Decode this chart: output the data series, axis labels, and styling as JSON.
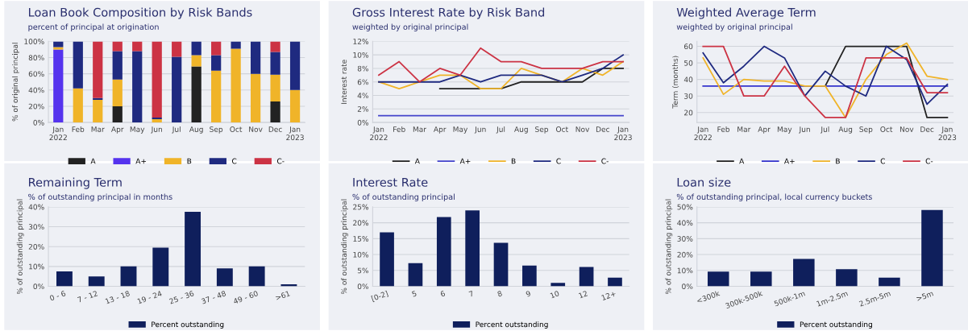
{
  "chart_data": [
    {
      "type": "bar",
      "title": "Loan Book Composition by Risk Bands",
      "subtitle": "percent of principal at origination",
      "ylabel": "% of original principal",
      "stacked": true,
      "grid": "y",
      "legend": "bottom",
      "categories": [
        "Jan\n2022",
        "Feb",
        "Mar",
        "Apr",
        "May",
        "Jun",
        "Jul",
        "Aug",
        "Sep",
        "Oct",
        "Nov",
        "Dec",
        "Jan\n2023"
      ],
      "ylim": [
        0,
        100
      ],
      "yticks": [
        {
          "value": 0,
          "label": "0%"
        },
        {
          "value": 20,
          "label": "20%"
        },
        {
          "value": 40,
          "label": "40%"
        },
        {
          "value": 60,
          "label": "60%"
        },
        {
          "value": 80,
          "label": "80%"
        },
        {
          "value": 100,
          "label": "100%"
        }
      ],
      "series": [
        {
          "name": "A",
          "color": "#222222",
          "values": [
            null,
            null,
            null,
            20,
            null,
            null,
            null,
            69,
            null,
            null,
            null,
            26,
            null
          ]
        },
        {
          "name": "A+",
          "color": "#5533ee",
          "values": [
            90,
            null,
            null,
            null,
            null,
            null,
            null,
            null,
            null,
            null,
            null,
            null,
            null
          ]
        },
        {
          "name": "B",
          "color": "#f0b429",
          "values": [
            3,
            42,
            28,
            33,
            null,
            4,
            null,
            14,
            64,
            91,
            60,
            33,
            40
          ]
        },
        {
          "name": "C",
          "color": "#1f2a80",
          "values": [
            7,
            58,
            2,
            35,
            88,
            2,
            81,
            17,
            19,
            9,
            40,
            28,
            60
          ]
        },
        {
          "name": "C-",
          "color": "#cc3344",
          "values": [
            null,
            null,
            70,
            12,
            12,
            94,
            19,
            null,
            17,
            null,
            null,
            13,
            null
          ]
        }
      ]
    },
    {
      "type": "line",
      "title": "Gross Interest Rate by Risk Band",
      "subtitle": "weighted by original principal",
      "ylabel": "Interest rate",
      "grid": "y",
      "legend": "bottom",
      "categories": [
        "Jan\n2022",
        "Feb",
        "Mar",
        "Apr",
        "May",
        "Jun",
        "Jul",
        "Aug",
        "Sep",
        "Oct",
        "Nov",
        "Dec",
        "Jan\n2023"
      ],
      "ylim": [
        0,
        12
      ],
      "yticks": [
        {
          "value": 0,
          "label": "0%"
        },
        {
          "value": 2,
          "label": "2%"
        },
        {
          "value": 4,
          "label": "4%"
        },
        {
          "value": 6,
          "label": "6%"
        },
        {
          "value": 8,
          "label": "8%"
        },
        {
          "value": 10,
          "label": "10%"
        },
        {
          "value": 12,
          "label": "12%"
        }
      ],
      "series": [
        {
          "name": "A",
          "color": "#222222",
          "values": [
            null,
            null,
            null,
            5,
            5,
            5,
            5,
            6,
            6,
            6,
            6,
            8,
            8
          ]
        },
        {
          "name": "A+",
          "color": "#4444cc",
          "values": [
            1,
            1,
            1,
            1,
            1,
            1,
            1,
            1,
            1,
            1,
            1,
            1,
            1
          ]
        },
        {
          "name": "B",
          "color": "#f0b429",
          "values": [
            6,
            5,
            6,
            7,
            7,
            5,
            5,
            8,
            7,
            6,
            8,
            7,
            9
          ]
        },
        {
          "name": "C",
          "color": "#1f2a80",
          "values": [
            6,
            6,
            6,
            6,
            7,
            6,
            7,
            7,
            7,
            6,
            7,
            8,
            10
          ]
        },
        {
          "name": "C-",
          "color": "#cc3344",
          "values": [
            7,
            9,
            6,
            8,
            7,
            11,
            9,
            9,
            8,
            8,
            8,
            9,
            9
          ]
        }
      ]
    },
    {
      "type": "line",
      "title": "Weighted Average Term",
      "subtitle": "weighted by original principal",
      "ylabel": "Term (months)",
      "grid": "y",
      "legend": "bottom",
      "categories": [
        "Jan\n2022",
        "Feb",
        "Mar",
        "Apr",
        "May",
        "Jun",
        "Jul",
        "Aug",
        "Sep",
        "Oct",
        "Nov",
        "Dec",
        "Jan\n2023"
      ],
      "ylim": [
        14,
        63
      ],
      "yticks": [
        20,
        30,
        40,
        50,
        60
      ],
      "series": [
        {
          "name": "A",
          "color": "#222222",
          "values": [
            null,
            null,
            null,
            null,
            null,
            null,
            36,
            60,
            60,
            60,
            60,
            17,
            17
          ]
        },
        {
          "name": "A+",
          "color": "#3333cc",
          "values": [
            36,
            36,
            36,
            36,
            36,
            36,
            36,
            36,
            36,
            36,
            36,
            36,
            36
          ]
        },
        {
          "name": "B",
          "color": "#f0b429",
          "values": [
            53,
            31,
            40,
            39,
            39,
            36,
            36,
            17,
            40,
            55,
            62,
            42,
            40
          ]
        },
        {
          "name": "C",
          "color": "#1f2a80",
          "values": [
            56,
            38,
            48,
            60,
            53,
            30,
            45,
            36,
            30,
            60,
            52,
            25,
            37
          ]
        },
        {
          "name": "C-",
          "color": "#cc3344",
          "values": [
            60,
            60,
            30,
            30,
            48,
            30,
            17,
            17,
            53,
            53,
            53,
            32,
            32
          ]
        }
      ]
    },
    {
      "type": "bar",
      "title": "Remaining Term",
      "subtitle": "% of outstanding principal in months",
      "ylabel": "% of outstanding principal",
      "grid": "y",
      "legend": "bottom",
      "categories": [
        "0 - 6",
        "7 - 12",
        "13 - 18",
        "19 - 24",
        "25 - 36",
        "37 - 48",
        "49 - 60",
        ">61"
      ],
      "ylim": [
        0,
        40
      ],
      "yticks": [
        {
          "value": 0,
          "label": "0%"
        },
        {
          "value": 10,
          "label": "10%"
        },
        {
          "value": 20,
          "label": "20%"
        },
        {
          "value": 30,
          "label": "30%"
        },
        {
          "value": 40,
          "label": "40%"
        }
      ],
      "series": [
        {
          "name": "Percent outstanding",
          "color": "#0f1f5c",
          "values": [
            7.5,
            5,
            10,
            19.5,
            37.5,
            9,
            10,
            1
          ]
        }
      ]
    },
    {
      "type": "bar",
      "title": "Interest Rate",
      "subtitle": "% of outstanding principal",
      "ylabel": "% of outstanding principal",
      "grid": "y",
      "legend": "bottom",
      "categories": [
        "[0-2]",
        "5",
        "6",
        "7",
        "8",
        "9",
        "10",
        "12",
        "12+"
      ],
      "ylim": [
        0,
        25
      ],
      "yticks": [
        {
          "value": 0,
          "label": "0%"
        },
        {
          "value": 5,
          "label": "5%"
        },
        {
          "value": 10,
          "label": "10%"
        },
        {
          "value": 15,
          "label": "15%"
        },
        {
          "value": 20,
          "label": "20%"
        },
        {
          "value": 25,
          "label": "25%"
        }
      ],
      "series": [
        {
          "name": "Percent outstanding",
          "color": "#0f1f5c",
          "values": [
            17,
            7.3,
            21.8,
            23.9,
            13.7,
            6.5,
            1.1,
            6.1,
            2.7
          ]
        }
      ]
    },
    {
      "type": "bar",
      "title": "Loan size",
      "subtitle": "% of outstanding principal, local currency buckets",
      "ylabel": "% of outstanding principal",
      "grid": "y",
      "legend": "bottom",
      "categories": [
        "<300k",
        "300k-500k",
        "500k-1m",
        "1m-2.5m",
        "2.5m-5m",
        ">5m"
      ],
      "ylim": [
        0,
        50
      ],
      "yticks": [
        {
          "value": 0,
          "label": "0%"
        },
        {
          "value": 10,
          "label": "10%"
        },
        {
          "value": 20,
          "label": "20%"
        },
        {
          "value": 30,
          "label": "30%"
        },
        {
          "value": 40,
          "label": "40%"
        },
        {
          "value": 50,
          "label": "50%"
        }
      ],
      "series": [
        {
          "name": "Percent outstanding",
          "color": "#0f1f5c",
          "values": [
            9.3,
            9.3,
            17.2,
            10.8,
            5.4,
            48
          ]
        }
      ]
    }
  ]
}
